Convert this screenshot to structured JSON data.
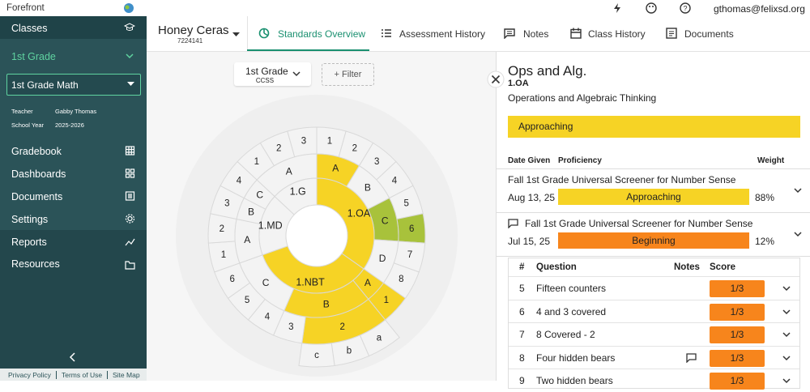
{
  "topbar": {
    "brand": "Forefront",
    "user": "gthomas@felixsd.org"
  },
  "sidebar": {
    "classes": "Classes",
    "grade": "1st Grade",
    "course": "1st Grade Math",
    "teacher_label": "Teacher",
    "teacher": "Gabby Thomas",
    "year_label": "School Year",
    "year": "2025-2026",
    "nav": [
      "Gradebook",
      "Dashboards",
      "Documents",
      "Settings",
      "Reports",
      "Resources"
    ],
    "footer": [
      "Privacy Policy",
      "Terms of Use",
      "Site Map"
    ]
  },
  "student": {
    "name": "Honey Ceras",
    "id": "7224141"
  },
  "tabs": [
    "Standards Overview",
    "Assessment History",
    "Notes",
    "Class History",
    "Documents"
  ],
  "filters": {
    "grade": "1st Grade",
    "framework": "CCSS",
    "add": "+ Filter"
  },
  "wheel": {
    "domains": [
      {
        "label": "1.OA",
        "color": "#f6d325",
        "clusters": [
          {
            "label": "A",
            "color": "#f6d325",
            "standards": [
              {
                "label": "1",
                "color": "#f3f3f3"
              },
              {
                "label": "2",
                "color": "#f3f3f3"
              }
            ]
          },
          {
            "label": "B",
            "color": "#f3f3f3",
            "standards": [
              {
                "label": "3",
                "color": "#f3f3f3"
              },
              {
                "label": "4",
                "color": "#f3f3f3"
              }
            ]
          },
          {
            "label": "C",
            "color": "#a8c23b",
            "standards": [
              {
                "label": "5",
                "color": "#f3f3f3"
              },
              {
                "label": "6",
                "color": "#a8c23b"
              }
            ]
          },
          {
            "label": "D",
            "color": "#f3f3f3",
            "standards": [
              {
                "label": "7",
                "color": "#f3f3f3"
              },
              {
                "label": "8",
                "color": "#f3f3f3"
              }
            ]
          }
        ]
      },
      {
        "label": "1.NBT",
        "color": "#f6d325",
        "clusters": [
          {
            "label": "A",
            "color": "#f6d325",
            "standards": [
              {
                "label": "1",
                "color": "#f6d325"
              }
            ]
          },
          {
            "label": "B",
            "color": "#f6d325",
            "standards": [
              {
                "label": "2",
                "color": "#f6d325",
                "subs": [
                  {
                    "label": "a",
                    "color": "#f3f3f3"
                  },
                  {
                    "label": "b",
                    "color": "#f3f3f3"
                  },
                  {
                    "label": "c",
                    "color": "#f3f3f3"
                  }
                ]
              },
              {
                "label": "3",
                "color": "#f3f3f3"
              }
            ]
          },
          {
            "label": "C",
            "color": "#f3f3f3",
            "standards": [
              {
                "label": "4",
                "color": "#f3f3f3"
              },
              {
                "label": "5",
                "color": "#f3f3f3"
              },
              {
                "label": "6",
                "color": "#f3f3f3"
              }
            ]
          }
        ]
      },
      {
        "label": "1.MD",
        "color": "#f3f3f3",
        "clusters": [
          {
            "label": "A",
            "color": "#f3f3f3",
            "standards": [
              {
                "label": "1",
                "color": "#f3f3f3"
              },
              {
                "label": "2",
                "color": "#f3f3f3"
              }
            ]
          },
          {
            "label": "B",
            "color": "#f3f3f3",
            "standards": [
              {
                "label": "3",
                "color": "#f3f3f3"
              }
            ]
          },
          {
            "label": "C",
            "color": "#f3f3f3",
            "standards": [
              {
                "label": "4",
                "color": "#f3f3f3"
              }
            ]
          }
        ]
      },
      {
        "label": "1.G",
        "color": "#f3f3f3",
        "clusters": [
          {
            "label": "A",
            "color": "#f3f3f3",
            "standards": [
              {
                "label": "1",
                "color": "#f3f3f3"
              },
              {
                "label": "2",
                "color": "#f3f3f3"
              },
              {
                "label": "3",
                "color": "#f3f3f3"
              }
            ]
          }
        ]
      }
    ]
  },
  "detail": {
    "title": "Ops and Alg.",
    "code": "1.OA",
    "description": "Operations and Algebraic Thinking",
    "status": "Approaching",
    "status_color": "#f6d325",
    "columns": [
      "Date Given",
      "Proficiency",
      "Weight"
    ],
    "assessments": [
      {
        "name": "Fall 1st Grade Universal Screener for Number Sense",
        "date": "Aug 13, 25",
        "level": "Approaching",
        "color": "#f6d325",
        "weight": "88%",
        "comment": false
      },
      {
        "name": "Fall 1st Grade Universal Screener for Number Sense",
        "date": "Jul 15, 25",
        "level": "Beginning",
        "color": "#f7851c",
        "weight": "12%",
        "comment": true
      }
    ],
    "questions": {
      "columns": [
        "#",
        "Question",
        "Notes",
        "Score"
      ],
      "score_color": "#f7851c",
      "rows": [
        {
          "num": "5",
          "text": "Fifteen counters",
          "score": "1/3",
          "notes": false
        },
        {
          "num": "6",
          "text": "4 and 3 covered",
          "score": "1/3",
          "notes": false
        },
        {
          "num": "7",
          "text": "8 Covered - 2",
          "score": "1/3",
          "notes": false
        },
        {
          "num": "8",
          "text": "Four hidden bears",
          "score": "1/3",
          "notes": true
        },
        {
          "num": "9",
          "text": "Two hidden bears",
          "score": "1/3",
          "notes": false
        }
      ]
    }
  }
}
